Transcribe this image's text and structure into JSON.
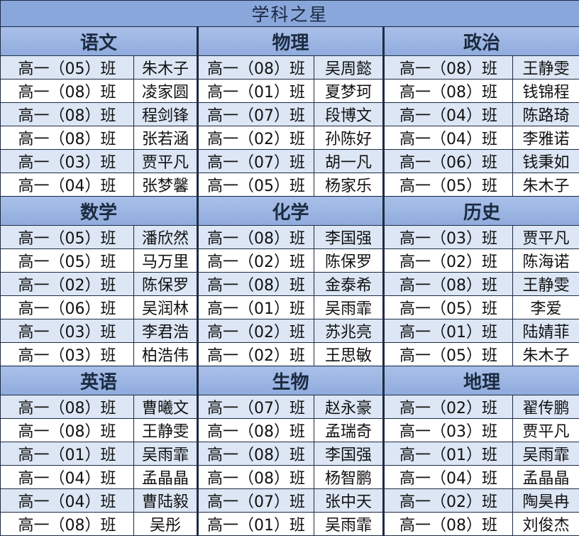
{
  "title": "学科之星",
  "colors": {
    "title_bg": "#8aa7dc",
    "header_bg_top": "#a9c0e8",
    "header_bg_bottom": "#8fabdd",
    "stripe_bg": "#dce6f4",
    "plain_bg": "#ffffff",
    "border": "#1e2b44"
  },
  "subjects": [
    {
      "name": "语文",
      "rows": [
        [
          "高一（05）班",
          "朱木子"
        ],
        [
          "高一（08）班",
          "凌家圆"
        ],
        [
          "高一（08）班",
          "程剑锋"
        ],
        [
          "高一（08）班",
          "张若涵"
        ],
        [
          "高一（03）班",
          "贾平凡"
        ],
        [
          "高一（04）班",
          "张梦馨"
        ]
      ]
    },
    {
      "name": "物理",
      "rows": [
        [
          "高一（08）班",
          "吴周懿"
        ],
        [
          "高一（01）班",
          "夏梦珂"
        ],
        [
          "高一（07）班",
          "段博文"
        ],
        [
          "高一（02）班",
          "孙陈好"
        ],
        [
          "高一（07）班",
          "胡一凡"
        ],
        [
          "高一（05）班",
          "杨家乐"
        ]
      ]
    },
    {
      "name": "政治",
      "rows": [
        [
          "高一（08）班",
          "王静雯"
        ],
        [
          "高一（08）班",
          "钱锦程"
        ],
        [
          "高一（04）班",
          "陈路琦"
        ],
        [
          "高一（04）班",
          "李雅诺"
        ],
        [
          "高一（06）班",
          "钱秉如"
        ],
        [
          "高一（05）班",
          "朱木子"
        ]
      ]
    },
    {
      "name": "数学",
      "rows": [
        [
          "高一（05）班",
          "潘欣然"
        ],
        [
          "高一（05）班",
          "马万里"
        ],
        [
          "高一（02）班",
          "陈保罗"
        ],
        [
          "高一（06）班",
          "吴润林"
        ],
        [
          "高一（03）班",
          "李君浩"
        ],
        [
          "高一（03）班",
          "柏浩伟"
        ]
      ]
    },
    {
      "name": "化学",
      "rows": [
        [
          "高一（08）班",
          "李国强"
        ],
        [
          "高一（02）班",
          "陈保罗"
        ],
        [
          "高一（08）班",
          "金泰希"
        ],
        [
          "高一（01）班",
          "吴雨霏"
        ],
        [
          "高一（02）班",
          "苏兆亮"
        ],
        [
          "高一（02）班",
          "王思敏"
        ]
      ]
    },
    {
      "name": "历史",
      "rows": [
        [
          "高一（03）班",
          "贾平凡"
        ],
        [
          "高一（02）班",
          "陈海诺"
        ],
        [
          "高一（08）班",
          "王静雯"
        ],
        [
          "高一（05）班",
          "李爱"
        ],
        [
          "高一（01）班",
          "陆婧菲"
        ],
        [
          "高一（05）班",
          "朱木子"
        ]
      ]
    },
    {
      "name": "英语",
      "rows": [
        [
          "高一（08）班",
          "曹曦文"
        ],
        [
          "高一（08）班",
          "王静雯"
        ],
        [
          "高一（01）班",
          "吴雨霏"
        ],
        [
          "高一（04）班",
          "孟晶晶"
        ],
        [
          "高一（04）班",
          "曹陆毅"
        ],
        [
          "高一（08）班",
          "吴彤"
        ]
      ]
    },
    {
      "name": "生物",
      "rows": [
        [
          "高一（07）班",
          "赵永豪"
        ],
        [
          "高一（08）班",
          "孟瑞奇"
        ],
        [
          "高一（08）班",
          "李国强"
        ],
        [
          "高一（08）班",
          "杨智鹏"
        ],
        [
          "高一（07）班",
          "张中天"
        ],
        [
          "高一（01）班",
          "吴雨霏"
        ]
      ]
    },
    {
      "name": "地理",
      "rows": [
        [
          "高一（02）班",
          "翟传鹏"
        ],
        [
          "高一（03）班",
          "贾平凡"
        ],
        [
          "高一（01）班",
          "吴雨霏"
        ],
        [
          "高一（04）班",
          "孟晶晶"
        ],
        [
          "高一（02）班",
          "陶昊冉"
        ],
        [
          "高一（08）班",
          "刘俊杰"
        ]
      ]
    }
  ]
}
